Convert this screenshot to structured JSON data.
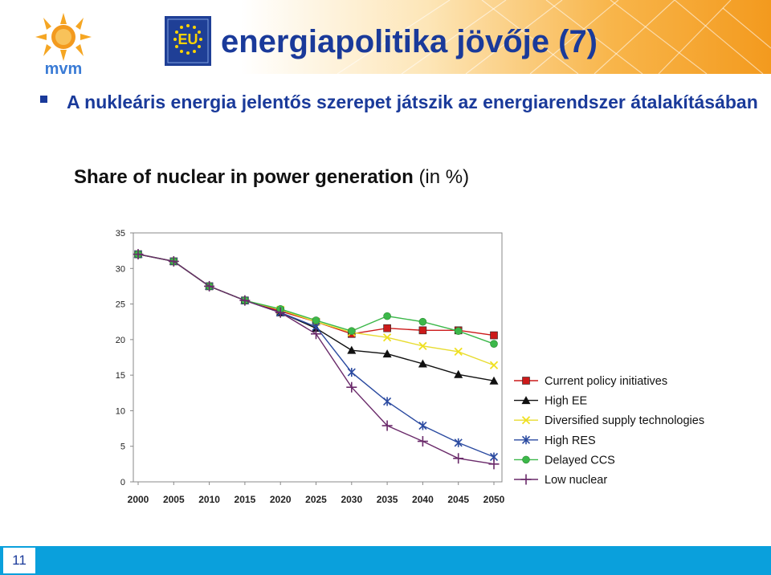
{
  "slide": {
    "title": "energiapolitika jövője (7)",
    "bullet": "A nukleáris energia jelentős szerepet játszik az energiarendszer átalakításában",
    "page_number": "11",
    "logo_text": "mvm",
    "eu_flag_text": "EU"
  },
  "colors": {
    "title": "#1a3a9a",
    "footer": "#0aa0dc",
    "header_orange": "#f39a1e"
  },
  "chart_data": {
    "type": "line",
    "title": "Share of nuclear in power generation",
    "title_unit": "(in %)",
    "x": [
      2000,
      2005,
      2010,
      2015,
      2020,
      2025,
      2030,
      2035,
      2040,
      2045,
      2050
    ],
    "ylim": [
      0,
      35
    ],
    "yticks": [
      0,
      5,
      10,
      15,
      20,
      25,
      30,
      35
    ],
    "grid": false,
    "legend_position": "right",
    "series": [
      {
        "name": "Current policy initiatives",
        "color": "#cc1a1a",
        "marker": "square",
        "values": [
          32,
          31,
          27.5,
          25.5,
          24,
          22.5,
          20.8,
          21.6,
          21.3,
          21.3,
          20.6
        ]
      },
      {
        "name": "High EE",
        "color": "#111111",
        "marker": "triangle",
        "values": [
          32,
          31,
          27.5,
          25.5,
          23.8,
          21.6,
          18.5,
          18.0,
          16.6,
          15.1,
          14.2
        ]
      },
      {
        "name": "Diversified supply technologies",
        "color": "#f0e020",
        "marker": "x",
        "values": [
          32,
          31,
          27.5,
          25.5,
          24.2,
          22.5,
          21.0,
          20.3,
          19.1,
          18.3,
          16.4
        ]
      },
      {
        "name": "High RES",
        "color": "#2a4aa0",
        "marker": "asterisk",
        "values": [
          32,
          31,
          27.5,
          25.5,
          23.8,
          21.8,
          15.4,
          11.3,
          7.9,
          5.5,
          3.5
        ]
      },
      {
        "name": "Delayed CCS",
        "color": "#3cb84a",
        "marker": "circle",
        "values": [
          32,
          31,
          27.5,
          25.5,
          24.3,
          22.7,
          21.2,
          23.3,
          22.5,
          21.2,
          19.4
        ]
      },
      {
        "name": "Low nuclear",
        "color": "#6a2a6a",
        "marker": "plus",
        "values": [
          32,
          31,
          27.5,
          25.5,
          23.8,
          20.8,
          13.3,
          7.9,
          5.7,
          3.3,
          2.5
        ]
      }
    ]
  }
}
